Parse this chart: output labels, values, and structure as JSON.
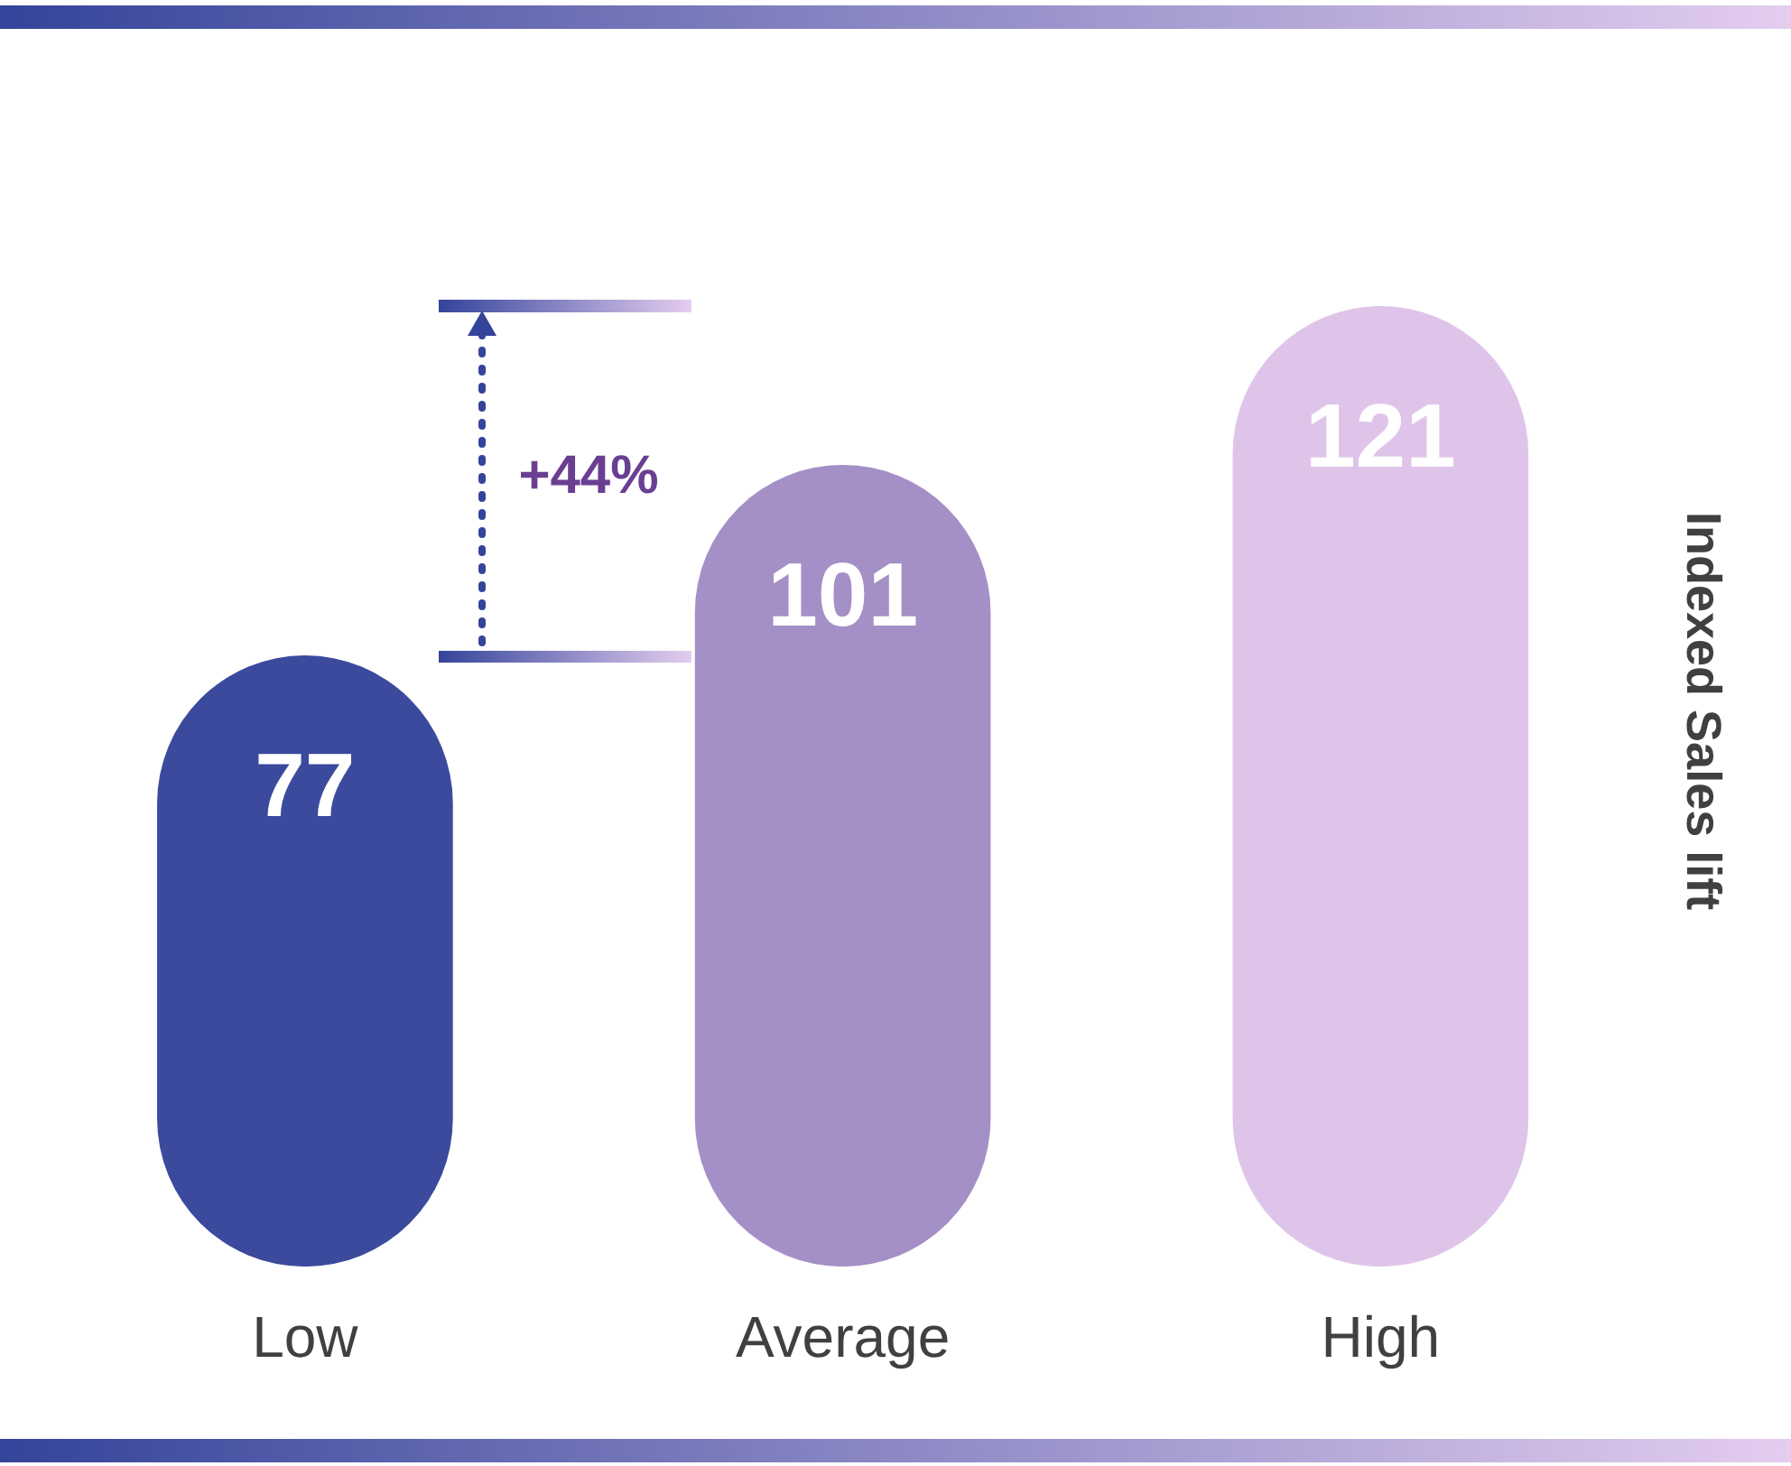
{
  "chart_data": {
    "type": "bar",
    "categories": [
      "Low",
      "Average",
      "High"
    ],
    "values": [
      77,
      101,
      121
    ],
    "colors": [
      "#3b4a9c",
      "#a48fc6",
      "#dfc4ea"
    ],
    "ylabel": "Indexed Sales lift",
    "data_labels": true,
    "grid": false,
    "legend": false,
    "tick_labels": "x",
    "annotations": [
      "+44%"
    ]
  }
}
